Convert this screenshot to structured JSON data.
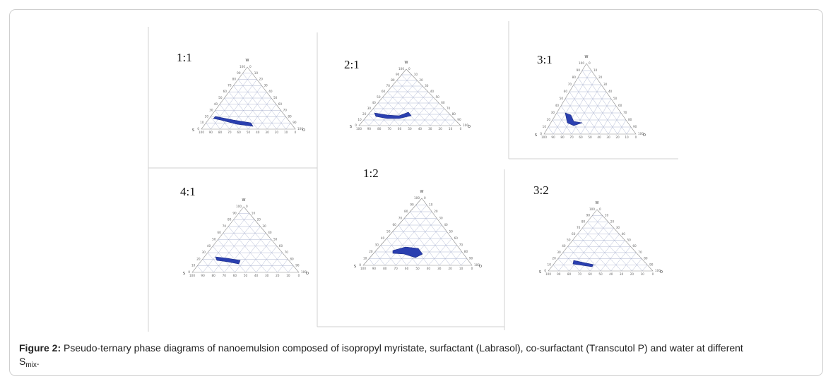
{
  "figure": {
    "caption_label": "Figure 2:",
    "caption_text": " Pseudo-ternary phase diagrams of nanoemulsion composed of isopropyl myristate, surfactant (Labrasol), co-surfactant (Transcutol P) and water at different ",
    "caption_symbol": "S",
    "caption_subscript": "mix",
    "caption_end": "."
  },
  "panels": [
    {
      "ratio": "1:1"
    },
    {
      "ratio": "2:1"
    },
    {
      "ratio": "3:1"
    },
    {
      "ratio": "4:1"
    },
    {
      "ratio": "1:2"
    },
    {
      "ratio": "3:2"
    }
  ],
  "axes": {
    "top": "W",
    "left": "S",
    "right": "O"
  },
  "ticks": [
    "100",
    "90",
    "80",
    "70",
    "60",
    "50",
    "40",
    "30",
    "20",
    "10",
    "0"
  ],
  "colors": {
    "region": "#2a3fb0",
    "grid": "#9aa4c8",
    "edge": "#8a8a8a"
  }
}
